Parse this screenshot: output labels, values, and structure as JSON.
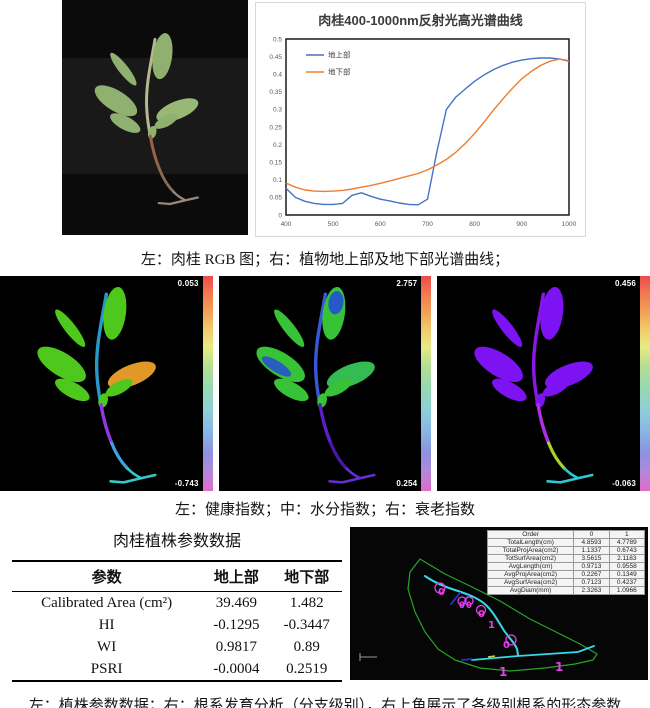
{
  "captions": {
    "row1": "左：肉桂 RGB 图；右：植物地上部及地下部光谱曲线；",
    "row2": "左：健康指数；中：水分指数；右：衰老指数",
    "row3": "左：植株参数数据；右：根系发育分析（分支级别），右上角展示了各级别根系的形态参数"
  },
  "chart_data": {
    "type": "line",
    "title": "肉桂400-1000nm反射光高光谱曲线",
    "xlabel": "",
    "ylabel": "",
    "xlim": [
      400,
      1000
    ],
    "ylim": [
      0,
      0.5
    ],
    "xticks": [
      400,
      500,
      600,
      700,
      800,
      900,
      1000
    ],
    "ytick_step": 0.05,
    "grid": false,
    "legend_position": "top-left-inside",
    "x": [
      400,
      420,
      440,
      460,
      480,
      500,
      520,
      540,
      560,
      580,
      600,
      620,
      640,
      660,
      680,
      700,
      720,
      740,
      760,
      780,
      800,
      820,
      840,
      860,
      880,
      900,
      920,
      940,
      960,
      980,
      1000
    ],
    "series": [
      {
        "name": "地上部",
        "color": "#4472C4",
        "values": [
          0.076,
          0.05,
          0.039,
          0.033,
          0.03,
          0.03,
          0.033,
          0.056,
          0.063,
          0.053,
          0.045,
          0.04,
          0.034,
          0.03,
          0.029,
          0.045,
          0.18,
          0.3,
          0.335,
          0.358,
          0.38,
          0.398,
          0.413,
          0.425,
          0.434,
          0.44,
          0.444,
          0.446,
          0.446,
          0.443,
          0.438
        ]
      },
      {
        "name": "地下部",
        "color": "#ED7D31",
        "values": [
          0.091,
          0.079,
          0.071,
          0.068,
          0.067,
          0.068,
          0.07,
          0.074,
          0.079,
          0.084,
          0.09,
          0.097,
          0.104,
          0.111,
          0.118,
          0.128,
          0.142,
          0.158,
          0.178,
          0.203,
          0.232,
          0.264,
          0.298,
          0.33,
          0.36,
          0.387,
          0.408,
          0.425,
          0.437,
          0.443,
          0.436
        ]
      }
    ]
  },
  "index_panels": [
    {
      "name": "健康指数",
      "max_label": "0.053",
      "min_label": "-0.743"
    },
    {
      "name": "水分指数",
      "max_label": "2.757",
      "min_label": "0.254"
    },
    {
      "name": "衰老指数",
      "max_label": "0.456",
      "min_label": "-0.063"
    }
  ],
  "param_table": {
    "title": "肉桂植株参数数据",
    "headers": [
      "参数",
      "地上部",
      "地下部"
    ],
    "rows": [
      [
        "Calibrated Area (cm²)",
        "39.469",
        "1.482"
      ],
      [
        "HI",
        "-0.1295",
        "-0.3447"
      ],
      [
        "WI",
        "0.9817",
        "0.89"
      ],
      [
        "PSRI",
        "-0.0004",
        "0.2519"
      ]
    ]
  },
  "root_table": {
    "headers": [
      "Order",
      "0",
      "1"
    ],
    "rows": [
      [
        "TotalLength(cm)",
        "4.8593",
        "4.7789"
      ],
      [
        "TotalProjArea(cm2)",
        "1.1337",
        "0.6743"
      ],
      [
        "TotSurfArea(cm2)",
        "3.5615",
        "2.1183"
      ],
      [
        "AvgLength(cm)",
        "0.9713",
        "0.9558"
      ],
      [
        "AvgProjArea(cm2)",
        "0.2267",
        "0.1349"
      ],
      [
        "AvgSurfArea(cm2)",
        "0.7123",
        "0.4237"
      ],
      [
        "AvgDiam(mm)",
        "2.3263",
        "1.0966"
      ]
    ]
  },
  "root_panel": {
    "order_labels": [
      "0",
      "0",
      "0",
      "0",
      "1",
      "0",
      "1",
      "1"
    ]
  }
}
